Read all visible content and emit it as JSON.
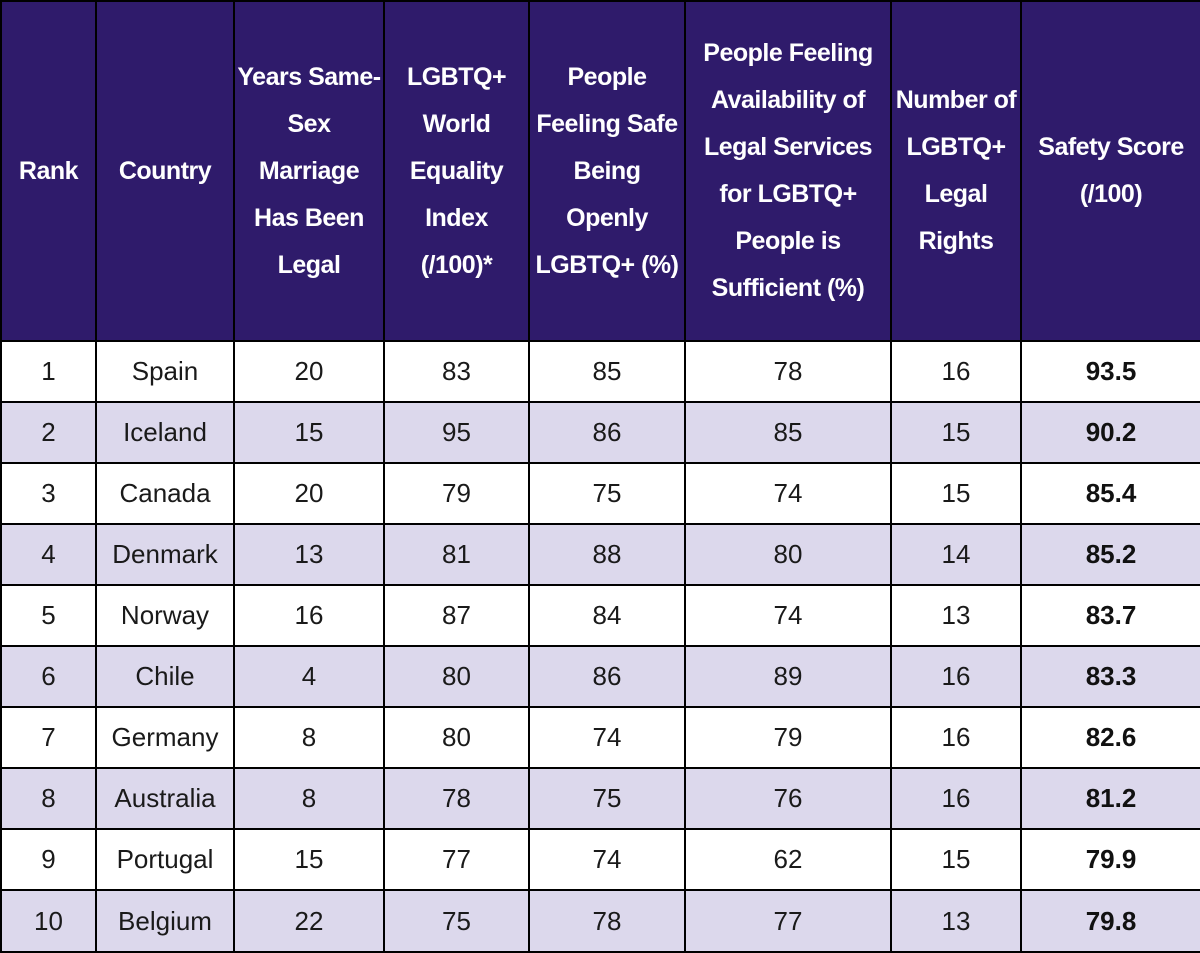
{
  "table": {
    "headers": [
      "Rank",
      "Country",
      "Years Same-Sex Marriage Has Been Legal",
      "LGBTQ+ World Equality Index (/100)*",
      "People Feeling Safe Being Openly LGBTQ+ (%)",
      "People Feeling Availability of Legal Services for LGBTQ+ People is Sufficient (%)",
      "Number of LGBTQ+ Legal Rights",
      "Safety Score (/100)"
    ],
    "rows": [
      [
        "1",
        "Spain",
        "20",
        "83",
        "85",
        "78",
        "16",
        "93.5"
      ],
      [
        "2",
        "Iceland",
        "15",
        "95",
        "86",
        "85",
        "15",
        "90.2"
      ],
      [
        "3",
        "Canada",
        "20",
        "79",
        "75",
        "74",
        "15",
        "85.4"
      ],
      [
        "4",
        "Denmark",
        "13",
        "81",
        "88",
        "80",
        "14",
        "85.2"
      ],
      [
        "5",
        "Norway",
        "16",
        "87",
        "84",
        "74",
        "13",
        "83.7"
      ],
      [
        "6",
        "Chile",
        "4",
        "80",
        "86",
        "89",
        "16",
        "83.3"
      ],
      [
        "7",
        "Germany",
        "8",
        "80",
        "74",
        "79",
        "16",
        "82.6"
      ],
      [
        "8",
        "Australia",
        "8",
        "78",
        "75",
        "76",
        "16",
        "81.2"
      ],
      [
        "9",
        "Portugal",
        "15",
        "77",
        "74",
        "62",
        "15",
        "79.9"
      ],
      [
        "10",
        "Belgium",
        "22",
        "75",
        "78",
        "77",
        "13",
        "79.8"
      ]
    ]
  },
  "colors": {
    "header_bg": "#2f1b6b",
    "header_text": "#ffffff",
    "stripe_bg": "#dcd8ec",
    "row_bg": "#ffffff",
    "border": "#000000"
  }
}
